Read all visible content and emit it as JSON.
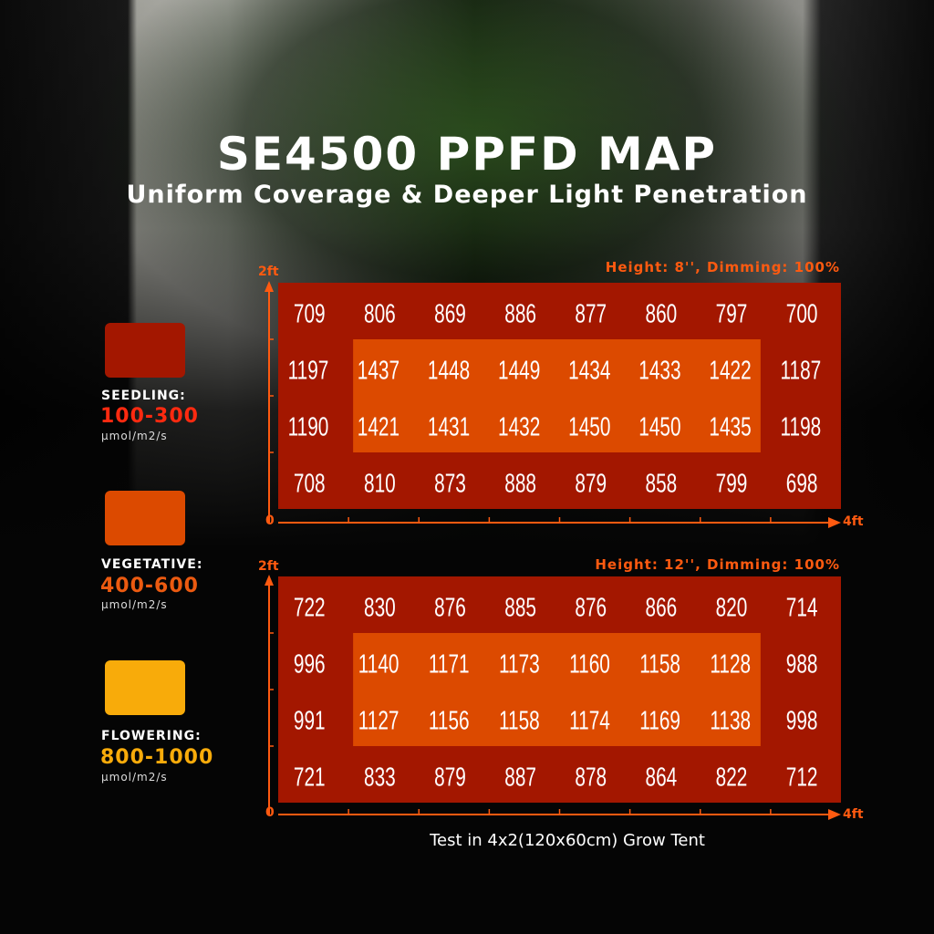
{
  "header": {
    "title": "SE4500 PPFD MAP",
    "subtitle": "Uniform Coverage & Deeper Light Penetration"
  },
  "legend": [
    {
      "name": "SEEDLING:",
      "range": "100-300",
      "unit": "μmol/m2/s",
      "color": "#a31700"
    },
    {
      "name": "VEGETATIVE:",
      "range": "400-600",
      "unit": "μmol/m2/s",
      "color": "#dc4a00"
    },
    {
      "name": "FLOWERING:",
      "range": "800-1000",
      "unit": "μmol/m2/s",
      "color": "#f8ab0a"
    }
  ],
  "caption": "Test in 4x2(120x60cm) Grow Tent",
  "chart_data": [
    {
      "type": "heatmap",
      "title": "Height: 8'', Dimming: 100%",
      "x_axis": {
        "start": "0",
        "end": "4ft"
      },
      "y_axis": {
        "end": "2ft"
      },
      "rows": [
        [
          709,
          806,
          869,
          886,
          877,
          860,
          797,
          700
        ],
        [
          1197,
          1437,
          1448,
          1449,
          1434,
          1433,
          1422,
          1187
        ],
        [
          1190,
          1421,
          1431,
          1432,
          1450,
          1450,
          1435,
          1198
        ],
        [
          708,
          810,
          873,
          888,
          879,
          858,
          799,
          698
        ]
      ]
    },
    {
      "type": "heatmap",
      "title": "Height: 12'', Dimming: 100%",
      "x_axis": {
        "start": "0",
        "end": "4ft"
      },
      "y_axis": {
        "end": "2ft"
      },
      "rows": [
        [
          722,
          830,
          876,
          885,
          876,
          866,
          820,
          714
        ],
        [
          996,
          1140,
          1171,
          1173,
          1160,
          1158,
          1128,
          988
        ],
        [
          991,
          1127,
          1156,
          1158,
          1174,
          1169,
          1138,
          998
        ],
        [
          721,
          833,
          879,
          887,
          878,
          864,
          822,
          712
        ]
      ]
    }
  ],
  "colors": {
    "outer": "#a31700",
    "inner": "#dc4a00",
    "axis": "#ff5a10"
  }
}
